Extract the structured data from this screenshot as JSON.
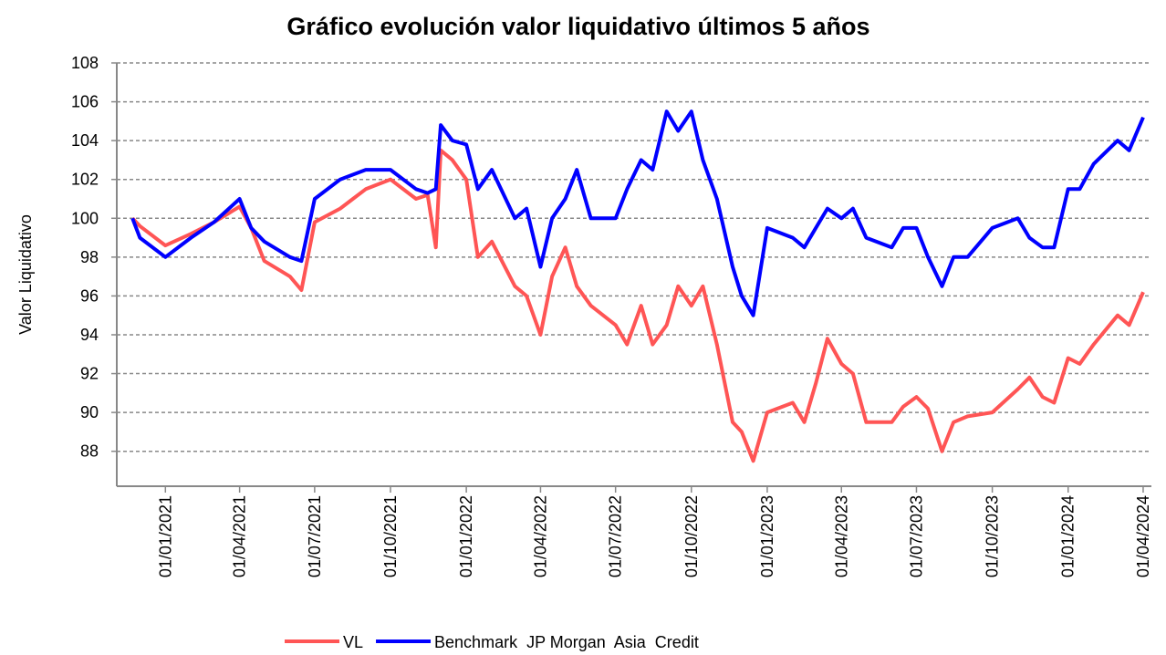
{
  "chart_data": {
    "type": "line",
    "title": "Gráfico evolución valor liquidativo últimos 5 años",
    "y_label": "Valor Liquidativo",
    "x": [
      "22/11/2020",
      "01/12/2020",
      "01/01/2021",
      "01/02/2021",
      "01/03/2021",
      "01/04/2021",
      "15/04/2021",
      "01/05/2021",
      "01/06/2021",
      "15/06/2021",
      "01/07/2021",
      "01/08/2021",
      "01/09/2021",
      "01/10/2021",
      "01/11/2021",
      "15/11/2021",
      "25/11/2021",
      "01/12/2021",
      "15/12/2021",
      "01/01/2022",
      "15/01/2022",
      "01/02/2022",
      "01/03/2022",
      "15/03/2022",
      "01/04/2022",
      "15/04/2022",
      "01/05/2022",
      "15/05/2022",
      "01/06/2022",
      "01/07/2022",
      "15/07/2022",
      "01/08/2022",
      "15/08/2022",
      "01/09/2022",
      "15/09/2022",
      "01/10/2022",
      "15/10/2022",
      "01/11/2022",
      "20/11/2022",
      "01/12/2022",
      "15/12/2022",
      "01/01/2023",
      "01/02/2023",
      "15/02/2023",
      "01/03/2023",
      "15/03/2023",
      "01/04/2023",
      "15/04/2023",
      "01/05/2023",
      "01/06/2023",
      "15/06/2023",
      "01/07/2023",
      "15/07/2023",
      "01/08/2023",
      "15/08/2023",
      "01/09/2023",
      "01/10/2023",
      "01/11/2023",
      "15/11/2023",
      "01/12/2023",
      "15/12/2023",
      "01/01/2024",
      "15/01/2024",
      "01/02/2024",
      "01/03/2024",
      "15/03/2024",
      "01/04/2024"
    ],
    "series": [
      {
        "name": "VL",
        "color": "#ff5555",
        "values": [
          100,
          99.6,
          98.6,
          99.2,
          99.8,
          100.6,
          99.5,
          97.8,
          97.0,
          96.3,
          99.8,
          100.5,
          101.5,
          102.0,
          101.0,
          101.2,
          98.5,
          103.5,
          103.0,
          102.0,
          98.0,
          98.8,
          96.5,
          96.0,
          94.0,
          97.0,
          98.5,
          96.5,
          95.5,
          94.5,
          93.5,
          95.5,
          93.5,
          94.5,
          96.5,
          95.5,
          96.5,
          93.5,
          89.5,
          89.0,
          87.5,
          90.0,
          90.5,
          89.5,
          91.5,
          93.8,
          92.5,
          92.0,
          89.5,
          89.5,
          90.3,
          90.8,
          90.2,
          88.0,
          89.5,
          89.8,
          90.0,
          91.2,
          91.8,
          90.8,
          90.5,
          92.8,
          92.5,
          93.5,
          95.0,
          94.5,
          96.2
        ]
      },
      {
        "name": "Benchmark  JP Morgan  Asia  Credit",
        "color": "#0000ff",
        "values": [
          100,
          99.0,
          98.0,
          99.0,
          99.8,
          101.0,
          99.5,
          98.8,
          98.0,
          97.8,
          101.0,
          102.0,
          102.5,
          102.5,
          101.5,
          101.3,
          101.5,
          104.8,
          104.0,
          103.8,
          101.5,
          102.5,
          100.0,
          100.5,
          97.5,
          100.0,
          101.0,
          102.5,
          100.0,
          100.0,
          101.5,
          103.0,
          102.5,
          105.5,
          104.5,
          105.5,
          103.0,
          101.0,
          97.5,
          96.0,
          95.0,
          99.5,
          99.0,
          98.5,
          99.5,
          100.5,
          100.0,
          100.5,
          99.0,
          98.5,
          99.5,
          99.5,
          98.0,
          96.5,
          98.0,
          98.0,
          99.5,
          100.0,
          99.0,
          98.5,
          98.5,
          101.5,
          101.5,
          102.8,
          104.0,
          103.5,
          105.2
        ]
      }
    ],
    "xlim": [
      "03/11/2020",
      "11/04/2024"
    ],
    "xticks": [
      "01/01/2021",
      "01/04/2021",
      "01/07/2021",
      "01/10/2021",
      "01/01/2022",
      "01/04/2022",
      "01/07/2022",
      "01/10/2022",
      "01/01/2023",
      "01/04/2023",
      "01/07/2023",
      "01/10/2023",
      "01/01/2024",
      "01/04/2024"
    ],
    "ylim": [
      86.2,
      108
    ],
    "yticks": [
      88,
      90,
      92,
      94,
      96,
      98,
      100,
      102,
      104,
      106,
      108
    ],
    "grid": true
  }
}
